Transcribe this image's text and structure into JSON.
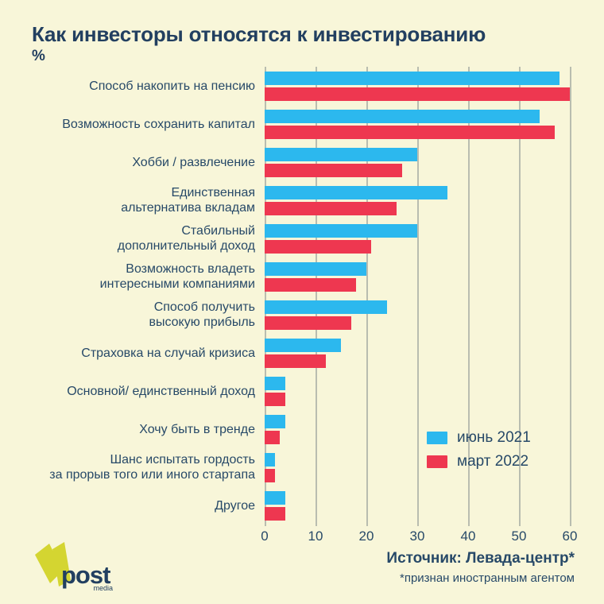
{
  "title": "Как инвесторы относятся к инвестированию",
  "unit_label": "%",
  "chart_data": {
    "type": "bar",
    "orientation": "horizontal",
    "unit": "%",
    "title": "Как инвесторы относятся к инвестированию",
    "categories": [
      [
        "Способ накопить на пенсию"
      ],
      [
        "Возможность сохранить капитал"
      ],
      [
        "Хобби / развлечение"
      ],
      [
        "Единственная",
        "альтернатива вкладам"
      ],
      [
        "Стабильный",
        "дополнительный доход"
      ],
      [
        "Возможность владеть",
        "интересными компаниями"
      ],
      [
        "Способ получить",
        "высокую прибыль"
      ],
      [
        "Страховка на случай кризиса"
      ],
      [
        "Основной/ единственный доход"
      ],
      [
        "Хочу быть в тренде"
      ],
      [
        "Шанс испытать гордость",
        "за прорыв того или иного стартапа"
      ],
      [
        "Другое"
      ]
    ],
    "series": [
      {
        "name": "июнь 2021",
        "color": "#2cb8ee",
        "values": [
          58,
          54,
          30,
          36,
          30,
          20,
          24,
          15,
          4,
          4,
          2,
          4
        ]
      },
      {
        "name": "март 2022",
        "color": "#ee3750",
        "values": [
          60,
          57,
          27,
          26,
          21,
          18,
          17,
          12,
          4,
          3,
          2,
          4
        ]
      }
    ],
    "x_ticks": [
      0,
      10,
      20,
      30,
      40,
      50,
      60
    ],
    "xlim": [
      0,
      60
    ],
    "grid": true,
    "legend_position": "inside-right"
  },
  "footer": {
    "source_line1": "Источник: Левада-центр*",
    "source_line2": "*признан иностранным агентом"
  },
  "logo": {
    "name": "post",
    "sub": "media"
  },
  "colors": {
    "background": "#f8f6d9",
    "text_navy": "#274968",
    "title_navy": "#223f60",
    "june_2021_blue": "#2cb8ee",
    "march_2022_red": "#ee3750",
    "gridline": "#b9bdb0",
    "logo_yellow": "#d4d531"
  }
}
